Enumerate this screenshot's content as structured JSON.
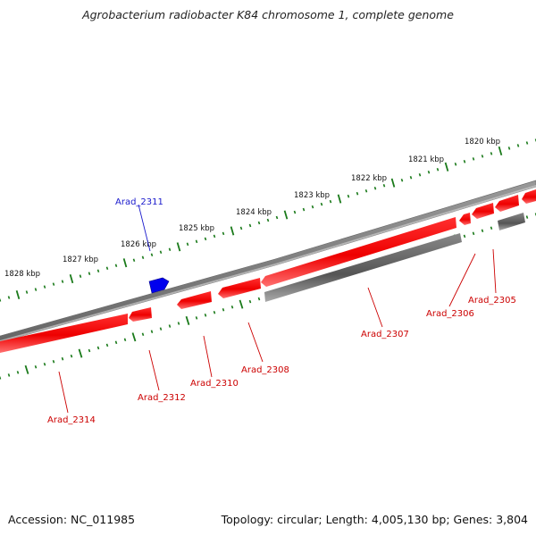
{
  "title": "Agrobacterium radiobacter K84 chromosome 1, complete genome",
  "footer": {
    "accession": "Accession: NC_011985",
    "summary": "Topology: circular; Length: 4,005,130 bp; Genes: 3,804"
  },
  "colors": {
    "forward_gene": "#ff0000",
    "forward_label": "#1a1acc",
    "forward_arrow": "#0000ee",
    "reverse_gene": "#ee0000",
    "reverse_label": "#cc0000",
    "other_gene": "#666666",
    "backbone": "#777777",
    "tick": "#1a7a1a"
  },
  "scale": {
    "labels": [
      "1820 kbp",
      "1821 kbp",
      "1822 kbp",
      "1823 kbp",
      "1824 kbp",
      "1825 kbp",
      "1826 kbp",
      "1827 kbp",
      "1828 kbp"
    ]
  },
  "genes": {
    "Arad_2311": "Arad_2311",
    "Arad_2305": "Arad_2305",
    "Arad_2306": "Arad_2306",
    "Arad_2307": "Arad_2307",
    "Arad_2308": "Arad_2308",
    "Arad_2310": "Arad_2310",
    "Arad_2312": "Arad_2312",
    "Arad_2314": "Arad_2314"
  }
}
